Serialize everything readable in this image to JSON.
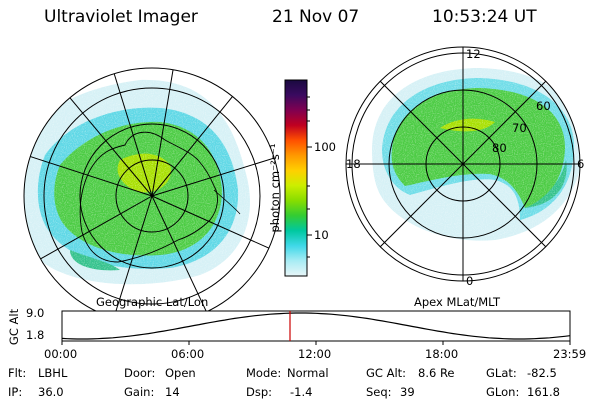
{
  "header": {
    "instrument": "Ultraviolet Imager",
    "date": "21 Nov 07",
    "time": "10:53:24 UT"
  },
  "left_panel": {
    "label": "Geographic Lat/Lon"
  },
  "right_panel": {
    "label": "Apex MLat/MLT",
    "mlt_labels": [
      "12",
      "18",
      "6",
      "0"
    ],
    "lat_labels": [
      "60",
      "70",
      "80"
    ]
  },
  "colorbar": {
    "unit": "photon cm⁻²s⁻¹",
    "ticks": [
      "100",
      "10"
    ],
    "scale": "log",
    "colors_top_to_bottom": [
      "#1a0a40",
      "#3a0a60",
      "#800050",
      "#c00020",
      "#ff5000",
      "#ff9900",
      "#ffd000",
      "#ccee00",
      "#88dd00",
      "#33cc33",
      "#00c8a0",
      "#40d8e8",
      "#a8ecf4",
      "#e8f6f8"
    ]
  },
  "altitude_plot": {
    "ylabel": "GC Alt",
    "yticks": [
      "9.0",
      "1.8"
    ],
    "xticks": [
      "00:00",
      "06:00",
      "12:00",
      "18:00",
      "23:59"
    ],
    "current_time_marker": "10:53"
  },
  "info": {
    "filter_label": "Flt:",
    "filter_value": "LBHL",
    "ip_label": "IP:",
    "ip_value": "36.0",
    "door_label": "Door:",
    "door_value": "Open",
    "gain_label": "Gain:",
    "gain_value": "14",
    "mode_label": "Mode:",
    "mode_value": "Normal",
    "dsp_label": "Dsp:",
    "dsp_value": "-1.4",
    "gcalt_label": "GC Alt:",
    "gcalt_value": "8.6 Re",
    "seq_label": "Seq:",
    "seq_value": "39",
    "glat_label": "GLat:",
    "glat_value": "-82.5",
    "glon_label": "GLon:",
    "glon_value": "161.8"
  },
  "colors": {
    "aurora_core": "#44cc44",
    "aurora_bright": "#99dd00",
    "aurora_edge": "#40d0e0",
    "aurora_faint": "#c8eef4",
    "marker": "#cc0000"
  }
}
